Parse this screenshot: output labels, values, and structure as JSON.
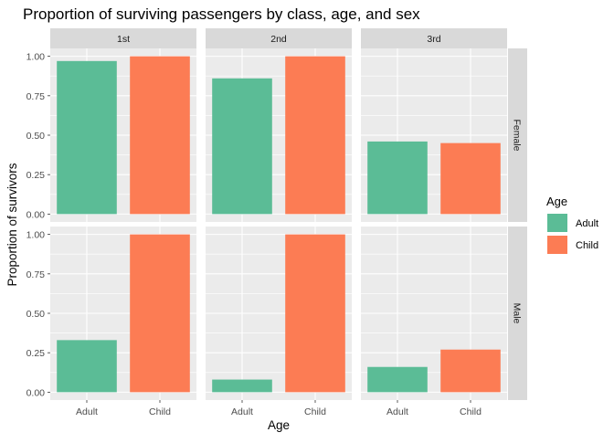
{
  "chart_data": {
    "type": "bar",
    "title": "Proportion of surviving passengers by class, age, and sex",
    "xlabel": "Age",
    "ylabel": "Proportion of survivors",
    "categories": [
      "Adult",
      "Child"
    ],
    "facet_columns": [
      "1st",
      "2nd",
      "3rd"
    ],
    "facet_rows": [
      "Female",
      "Male"
    ],
    "ylim": [
      0,
      1.0
    ],
    "yticks": [
      "0.00",
      "0.25",
      "0.50",
      "0.75",
      "1.00"
    ],
    "ytick_values": [
      0,
      0.25,
      0.5,
      0.75,
      1.0
    ],
    "grid": true,
    "legend_position": "right",
    "legend": {
      "title": "Age",
      "items": [
        {
          "label": "Adult",
          "color": "#5bbc96"
        },
        {
          "label": "Child",
          "color": "#fc7c54"
        }
      ]
    },
    "panels": [
      {
        "column": "1st",
        "row": "Female",
        "values": {
          "Adult": 0.97,
          "Child": 1.0
        }
      },
      {
        "column": "2nd",
        "row": "Female",
        "values": {
          "Adult": 0.86,
          "Child": 1.0
        }
      },
      {
        "column": "3rd",
        "row": "Female",
        "values": {
          "Adult": 0.46,
          "Child": 0.45
        }
      },
      {
        "column": "1st",
        "row": "Male",
        "values": {
          "Adult": 0.33,
          "Child": 1.0
        }
      },
      {
        "column": "2nd",
        "row": "Male",
        "values": {
          "Adult": 0.08,
          "Child": 1.0
        }
      },
      {
        "column": "3rd",
        "row": "Male",
        "values": {
          "Adult": 0.16,
          "Child": 0.27
        }
      }
    ]
  }
}
